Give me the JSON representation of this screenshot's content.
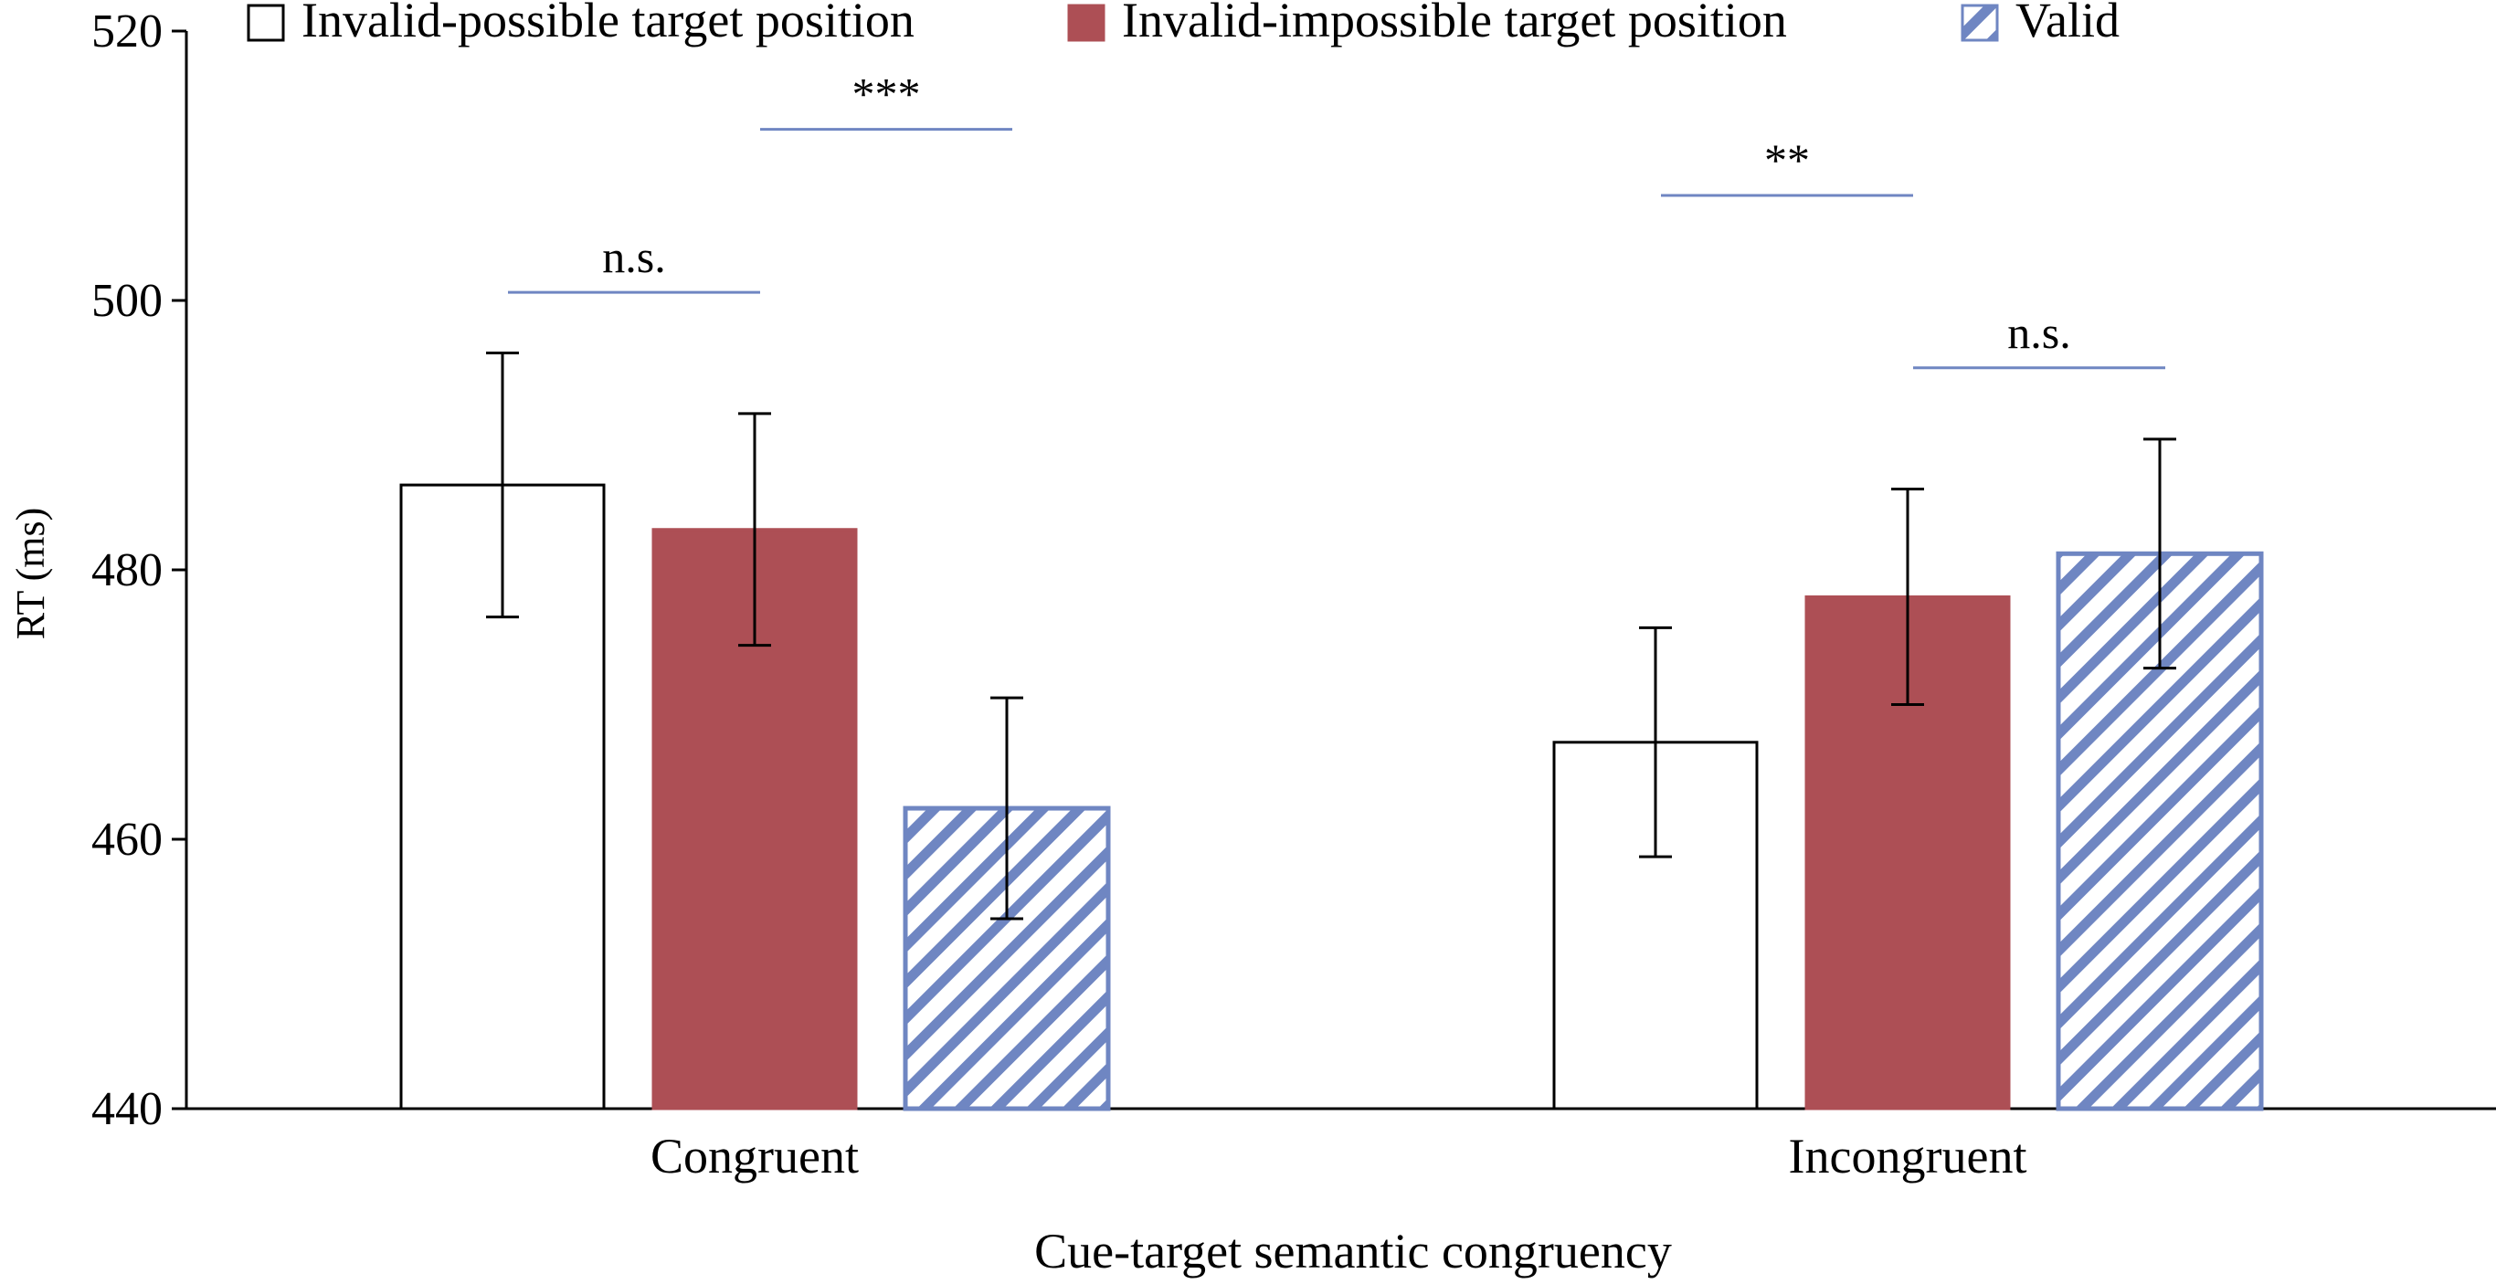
{
  "chart_data": {
    "type": "bar",
    "xlabel": "Cue-target semantic congruency",
    "ylabel": "RT (ms)",
    "ylim": [
      440,
      520
    ],
    "yticks": [
      440,
      460,
      480,
      500,
      520
    ],
    "categories": [
      "Congruent",
      "Incongruent"
    ],
    "legend_position": "top",
    "series": [
      {
        "name": "Invalid-possible target position",
        "values": [
          486.3,
          467.2
        ],
        "errors": [
          9.8,
          8.5
        ],
        "fill": "#ffffff",
        "stroke": "#000000",
        "pattern": "none"
      },
      {
        "name": "Invalid-impossible target position",
        "values": [
          483.0,
          478.0
        ],
        "errors": [
          8.6,
          8.0
        ],
        "fill": "#ad4f55",
        "stroke": "#ad4f55",
        "pattern": "none"
      },
      {
        "name": "Valid",
        "values": [
          462.3,
          481.2
        ],
        "errors": [
          8.2,
          8.5
        ],
        "fill": "#ffffff",
        "stroke": "#6f86c2",
        "pattern": "diagonal-stripes"
      }
    ],
    "significance": [
      {
        "category": 0,
        "from_series": 0,
        "to_series": 1,
        "label": "n.s.",
        "y": 500.6
      },
      {
        "category": 0,
        "from_series": 1,
        "to_series": 2,
        "label": "***",
        "y": 512.7
      },
      {
        "category": 1,
        "from_series": 0,
        "to_series": 1,
        "label": "**",
        "y": 507.8
      },
      {
        "category": 1,
        "from_series": 1,
        "to_series": 2,
        "label": "n.s.",
        "y": 495.0
      }
    ],
    "significance_line_color": "#6f86c2",
    "grid": false
  }
}
